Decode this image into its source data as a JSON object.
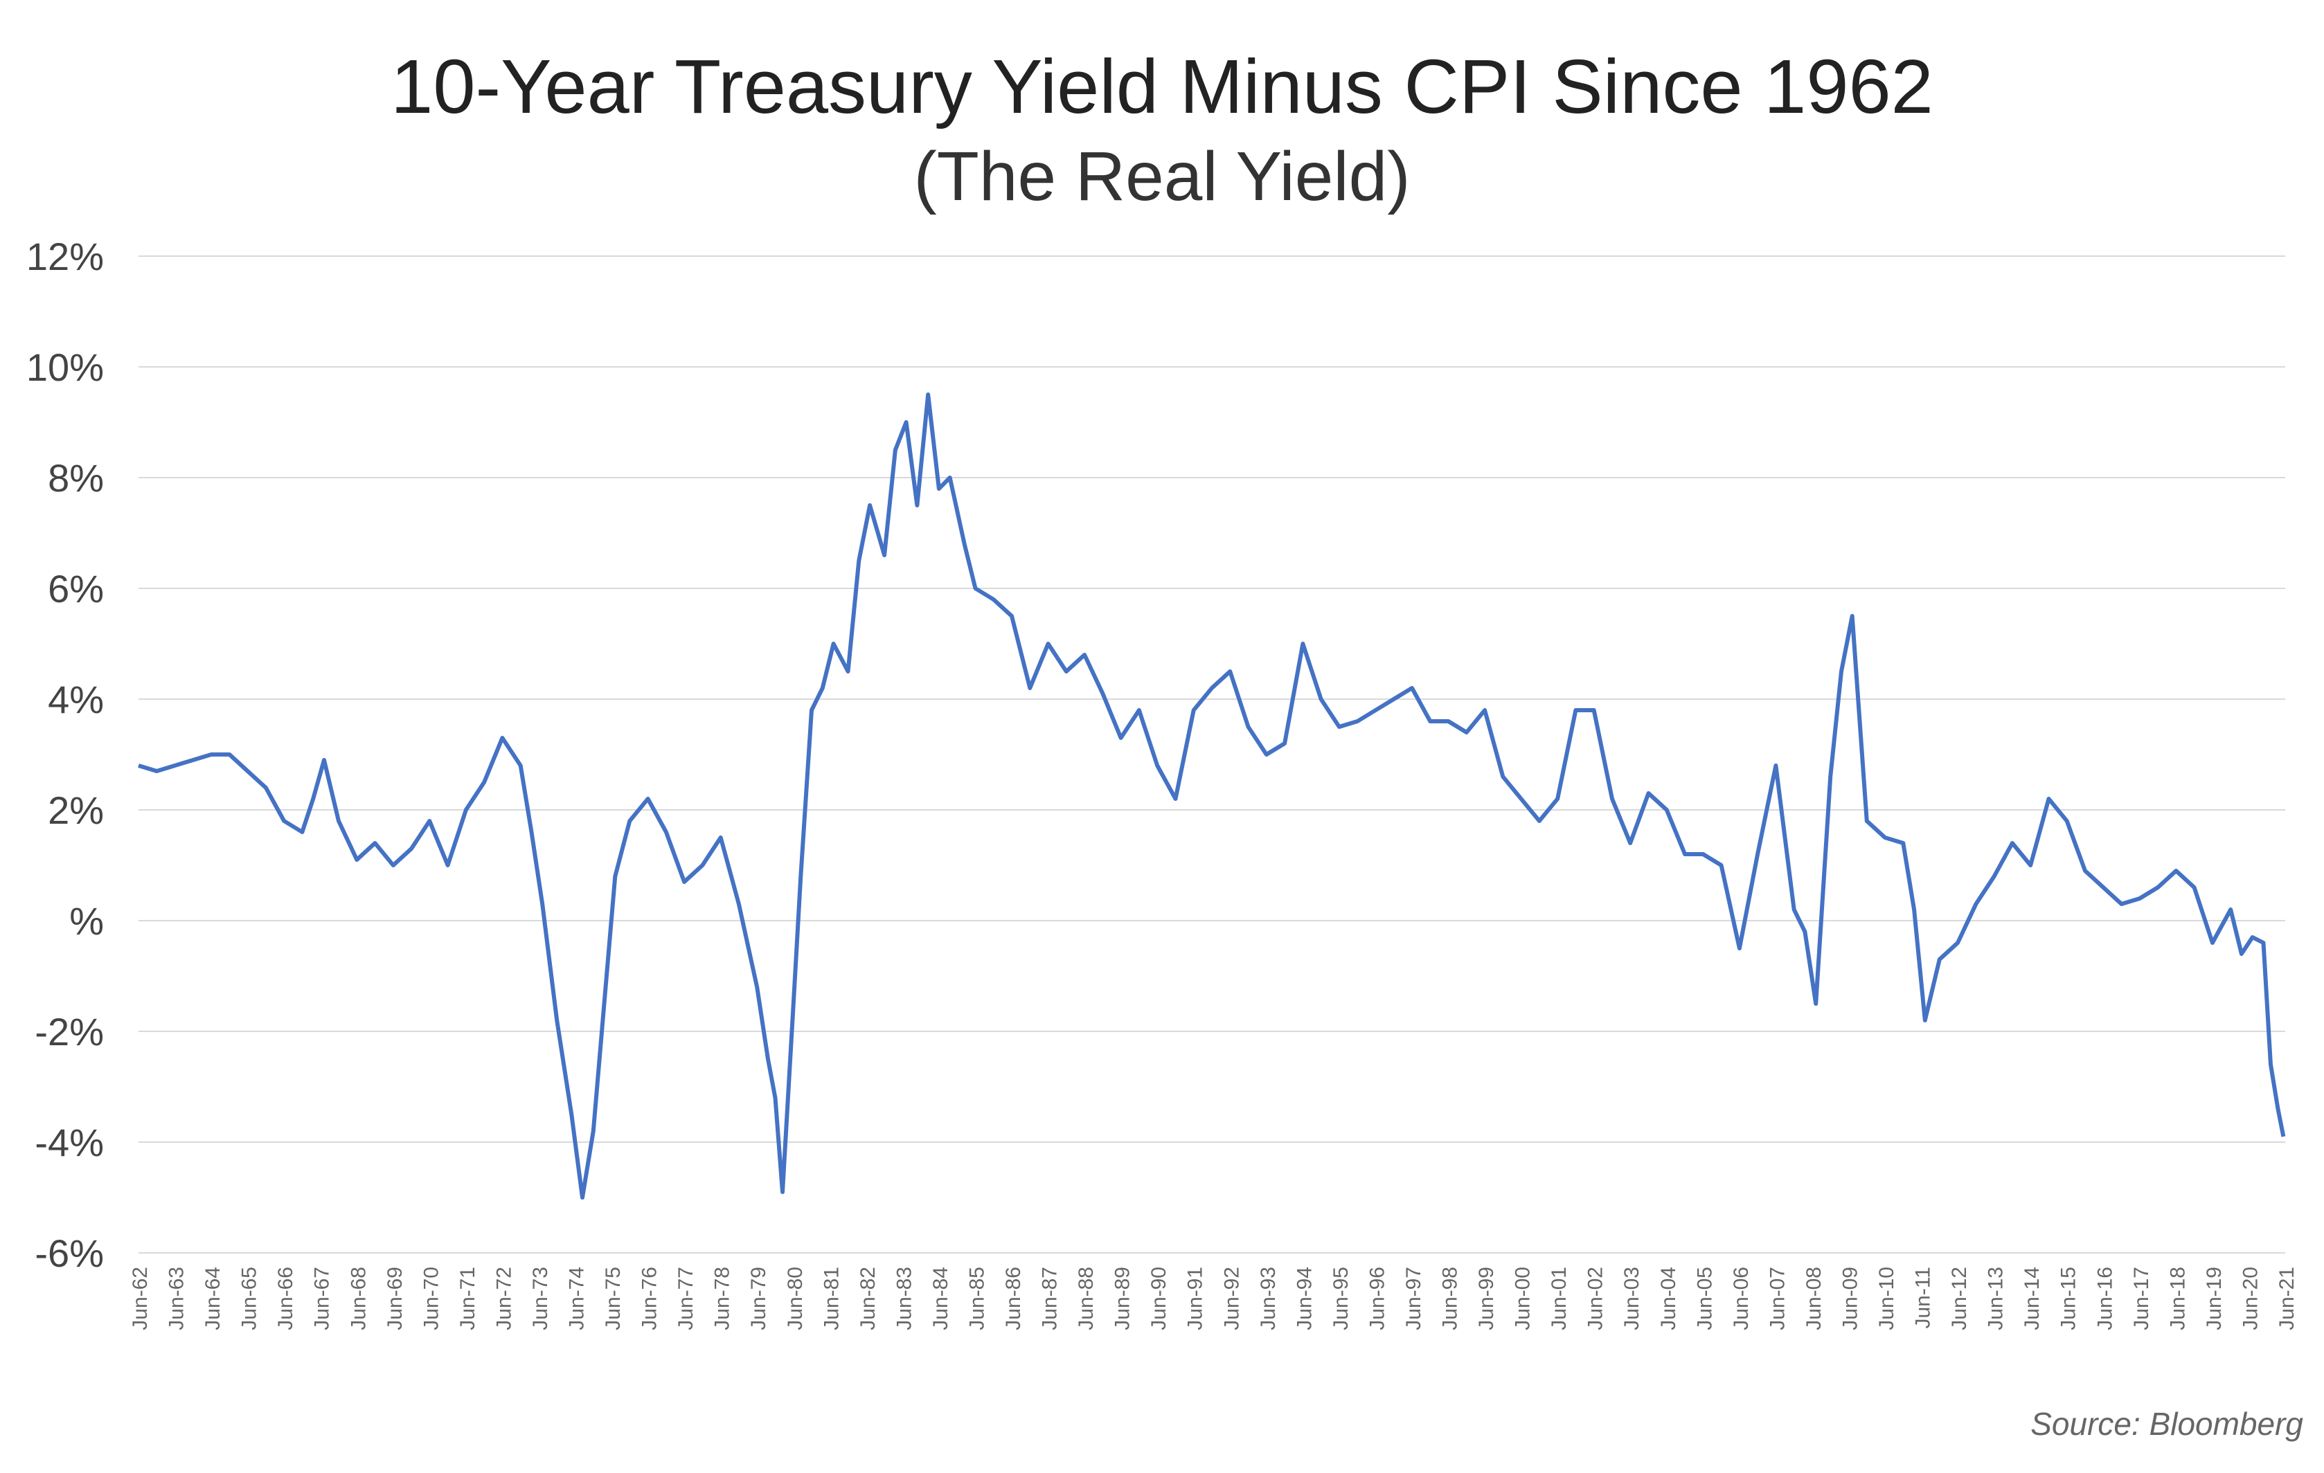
{
  "chart_data": {
    "type": "line",
    "title": "10-Year Treasury Yield Minus CPI Since 1962",
    "subtitle": "(The Real Yield)",
    "source": "Source: Bloomberg",
    "xlabel": "",
    "ylabel": "",
    "ylim": [
      -6,
      12
    ],
    "y_ticks": [
      {
        "value": 12,
        "label": "12%"
      },
      {
        "value": 10,
        "label": "10%"
      },
      {
        "value": 8,
        "label": "8%"
      },
      {
        "value": 6,
        "label": "6%"
      },
      {
        "value": 4,
        "label": "4%"
      },
      {
        "value": 2,
        "label": "2%"
      },
      {
        "value": 0,
        "label": "%"
      },
      {
        "value": -2,
        "label": "-2%"
      },
      {
        "value": -4,
        "label": "-4%"
      },
      {
        "value": -6,
        "label": "-6%"
      }
    ],
    "x_ticks": [
      "Jun-62",
      "Jun-63",
      "Jun-64",
      "Jun-65",
      "Jun-66",
      "Jun-67",
      "Jun-68",
      "Jun-69",
      "Jun-70",
      "Jun-71",
      "Jun-72",
      "Jun-73",
      "Jun-74",
      "Jun-75",
      "Jun-76",
      "Jun-77",
      "Jun-78",
      "Jun-79",
      "Jun-80",
      "Jun-81",
      "Jun-82",
      "Jun-83",
      "Jun-84",
      "Jun-85",
      "Jun-86",
      "Jun-87",
      "Jun-88",
      "Jun-89",
      "Jun-90",
      "Jun-91",
      "Jun-92",
      "Jun-93",
      "Jun-94",
      "Jun-95",
      "Jun-96",
      "Jun-97",
      "Jun-98",
      "Jun-99",
      "Jun-00",
      "Jun-01",
      "Jun-02",
      "Jun-03",
      "Jun-04",
      "Jun-05",
      "Jun-06",
      "Jun-07",
      "Jun-08",
      "Jun-09",
      "Jun-10",
      "Jun-11",
      "Jun-12",
      "Jun-13",
      "Jun-14",
      "Jun-15",
      "Jun-16",
      "Jun-17",
      "Jun-18",
      "Jun-19",
      "Jun-20",
      "Jun-21"
    ],
    "grid": true,
    "line_color": "#4472C4",
    "series": [
      {
        "name": "",
        "x": [
          1962.5,
          1963.0,
          1963.5,
          1964.0,
          1964.5,
          1965.0,
          1965.5,
          1966.0,
          1966.5,
          1967.0,
          1967.3,
          1967.6,
          1968.0,
          1968.5,
          1969.0,
          1969.5,
          1970.0,
          1970.5,
          1971.0,
          1971.5,
          1972.0,
          1972.5,
          1973.0,
          1973.3,
          1973.6,
          1974.0,
          1974.4,
          1974.7,
          1975.0,
          1975.3,
          1975.6,
          1976.0,
          1976.5,
          1977.0,
          1977.5,
          1978.0,
          1978.5,
          1979.0,
          1979.5,
          1979.8,
          1980.0,
          1980.2,
          1980.5,
          1980.7,
          1981.0,
          1981.3,
          1981.6,
          1982.0,
          1982.3,
          1982.6,
          1983.0,
          1983.3,
          1983.6,
          1983.9,
          1984.2,
          1984.5,
          1984.8,
          1985.2,
          1985.5,
          1986.0,
          1986.5,
          1987.0,
          1987.5,
          1988.0,
          1988.5,
          1989.0,
          1989.5,
          1990.0,
          1990.5,
          1991.0,
          1991.5,
          1992.0,
          1992.5,
          1993.0,
          1993.5,
          1994.0,
          1994.5,
          1995.0,
          1995.5,
          1996.0,
          1996.5,
          1997.0,
          1997.5,
          1998.0,
          1998.5,
          1999.0,
          1999.5,
          2000.0,
          2000.5,
          2001.0,
          2001.5,
          2002.0,
          2002.5,
          2003.0,
          2003.5,
          2004.0,
          2004.5,
          2005.0,
          2005.5,
          2006.0,
          2006.5,
          2007.0,
          2007.5,
          2008.0,
          2008.3,
          2008.6,
          2009.0,
          2009.3,
          2009.6,
          2010.0,
          2010.5,
          2011.0,
          2011.3,
          2011.6,
          2012.0,
          2012.5,
          2013.0,
          2013.5,
          2014.0,
          2014.5,
          2015.0,
          2015.5,
          2016.0,
          2016.5,
          2017.0,
          2017.5,
          2018.0,
          2018.5,
          2019.0,
          2019.5,
          2020.0,
          2020.3,
          2020.6,
          2020.9,
          2021.1,
          2021.3,
          2021.45
        ],
        "y": [
          2.8,
          2.7,
          2.8,
          2.9,
          3.0,
          3.0,
          2.7,
          2.4,
          1.8,
          1.6,
          2.2,
          2.9,
          1.8,
          1.1,
          1.4,
          1.0,
          1.3,
          1.8,
          1.0,
          2.0,
          2.5,
          3.3,
          2.8,
          1.6,
          0.3,
          -1.8,
          -3.5,
          -5.0,
          -3.8,
          -1.5,
          0.8,
          1.8,
          2.2,
          1.6,
          0.7,
          1.0,
          1.5,
          0.3,
          -1.2,
          -2.5,
          -3.2,
          -4.9,
          -1.5,
          0.8,
          3.8,
          4.2,
          5.0,
          4.5,
          6.5,
          7.5,
          6.6,
          8.5,
          9.0,
          7.5,
          9.5,
          7.8,
          8.0,
          6.8,
          6.0,
          5.8,
          5.5,
          4.2,
          5.0,
          4.5,
          4.8,
          4.1,
          3.3,
          3.8,
          2.8,
          2.2,
          3.8,
          4.2,
          4.5,
          3.5,
          3.0,
          3.2,
          5.0,
          4.0,
          3.5,
          3.6,
          3.8,
          4.0,
          4.2,
          3.6,
          3.6,
          3.4,
          3.8,
          2.6,
          2.2,
          1.8,
          2.2,
          3.8,
          3.8,
          2.2,
          1.4,
          2.3,
          2.0,
          1.2,
          1.2,
          1.0,
          -0.5,
          1.2,
          2.8,
          0.2,
          -0.2,
          -1.5,
          2.6,
          4.5,
          5.5,
          1.8,
          1.5,
          1.4,
          0.2,
          -1.8,
          -0.7,
          -0.4,
          0.3,
          0.8,
          1.4,
          1.0,
          2.2,
          1.8,
          0.9,
          0.6,
          0.3,
          0.4,
          0.6,
          0.9,
          0.6,
          -0.4,
          0.2,
          -0.6,
          -0.3,
          -0.4,
          -2.6,
          -3.4,
          -3.9
        ]
      }
    ]
  }
}
